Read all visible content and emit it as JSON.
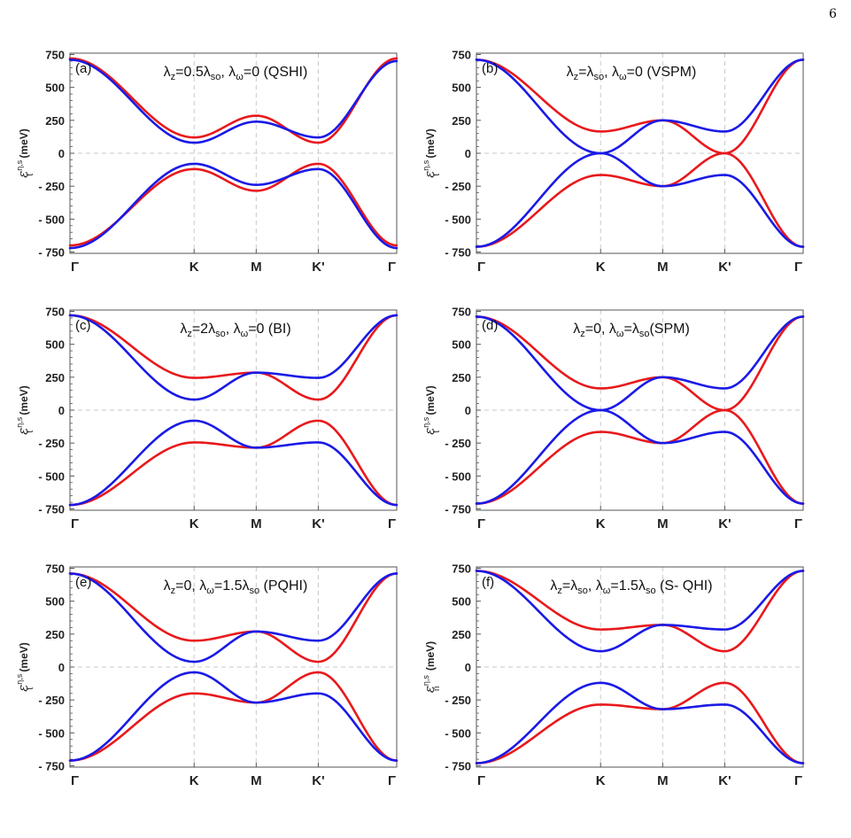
{
  "page_number": "6",
  "colors": {
    "band_red": "#e8191c",
    "band_blue": "#1a1ae6",
    "grid": "#c8c8c8",
    "frame": "#555555"
  },
  "chart_data": [
    {
      "type": "line",
      "panel_label": "(a)",
      "title": {
        "pre": "λ",
        "sub1": "z",
        "mid": "=0.5λ",
        "sub2": "so",
        "mid2": ", λ",
        "sub3": "ω",
        "post": "=0 (QSHI)"
      },
      "ylabel": "ε",
      "ylabel_sup": "η,s",
      "ylabel_sub": "t",
      "ylabel_unit": "(meV)",
      "ylim": [
        -760,
        760
      ],
      "yticks": [
        750,
        500,
        250,
        0,
        -250,
        -500,
        -750
      ],
      "ytick_labels": [
        "750",
        "500",
        "250",
        "0",
        "- 250",
        "- 500",
        "- 750"
      ],
      "xticks": [
        0,
        0.38,
        0.57,
        0.76,
        1
      ],
      "xtick_labels": [
        "Γ",
        "K",
        "M",
        "K'",
        "Γ"
      ],
      "series": [
        {
          "color": "red",
          "values": [
            720,
            120,
            285,
            80,
            720
          ]
        },
        {
          "color": "blue",
          "values": [
            710,
            80,
            240,
            120,
            700
          ]
        },
        {
          "color": "red",
          "values": [
            -700,
            -120,
            -285,
            -80,
            -700
          ]
        },
        {
          "color": "blue",
          "values": [
            -720,
            -80,
            -240,
            -120,
            -720
          ]
        }
      ]
    },
    {
      "type": "line",
      "panel_label": "(b)",
      "title": {
        "pre": "λ",
        "sub1": "z",
        "mid": "=λ",
        "sub2": "so",
        "mid2": ", λ",
        "sub3": "ω",
        "post": "=0 (VSPM)"
      },
      "ylabel": "ε",
      "ylabel_sup": "η,s",
      "ylabel_sub": "t",
      "ylabel_unit": "(meV)",
      "ylim": [
        -760,
        760
      ],
      "yticks": [
        750,
        500,
        250,
        0,
        -250,
        -500,
        -750
      ],
      "ytick_labels": [
        "750",
        "500",
        "250",
        "0",
        "- 250",
        "- 500",
        "- 750"
      ],
      "xticks": [
        0,
        0.38,
        0.57,
        0.76,
        1
      ],
      "xtick_labels": [
        "Γ",
        "K",
        "M",
        "K'",
        "Γ"
      ],
      "series": [
        {
          "color": "red",
          "values": [
            710,
            165,
            250,
            0,
            710
          ]
        },
        {
          "color": "blue",
          "values": [
            710,
            0,
            250,
            165,
            710
          ]
        },
        {
          "color": "red",
          "values": [
            -710,
            -165,
            -250,
            0,
            -710
          ]
        },
        {
          "color": "blue",
          "values": [
            -710,
            0,
            -250,
            -165,
            -710
          ]
        }
      ]
    },
    {
      "type": "line",
      "panel_label": "(c)",
      "title": {
        "pre": "λ",
        "sub1": "z",
        "mid": "=2λ",
        "sub2": "so",
        "mid2": ", λ",
        "sub3": "ω",
        "post": "=0 (BI)"
      },
      "ylabel": "ε",
      "ylabel_sup": "η,s",
      "ylabel_sub": "t",
      "ylabel_unit": "(meV)",
      "ylim": [
        -760,
        760
      ],
      "yticks": [
        750,
        500,
        250,
        0,
        -250,
        -500,
        -750
      ],
      "ytick_labels": [
        "750",
        "500",
        "250",
        "0",
        "- 250",
        "- 500",
        "- 750"
      ],
      "xticks": [
        0,
        0.38,
        0.57,
        0.76,
        1
      ],
      "xtick_labels": [
        "Γ",
        "K",
        "M",
        "K'",
        "Γ"
      ],
      "series": [
        {
          "color": "red",
          "values": [
            720,
            245,
            285,
            80,
            720
          ]
        },
        {
          "color": "blue",
          "values": [
            720,
            80,
            285,
            245,
            720
          ]
        },
        {
          "color": "red",
          "values": [
            -720,
            -245,
            -285,
            -80,
            -720
          ]
        },
        {
          "color": "blue",
          "values": [
            -720,
            -80,
            -285,
            -245,
            -720
          ]
        }
      ]
    },
    {
      "type": "line",
      "panel_label": "(d)",
      "title": {
        "pre": "λ",
        "sub1": "z",
        "mid": "=0, λ",
        "sub2": "ω",
        "mid2": "=λ",
        "sub3": "so",
        "post": "(SPM)"
      },
      "ylabel": "ε",
      "ylabel_sup": "η,s",
      "ylabel_sub": "t",
      "ylabel_unit": "(meV)",
      "ylim": [
        -760,
        760
      ],
      "yticks": [
        750,
        500,
        250,
        0,
        -250,
        -500,
        -750
      ],
      "ytick_labels": [
        "750",
        "500",
        "250",
        "0",
        "- 250",
        "- 500",
        "- 750"
      ],
      "xticks": [
        0,
        0.38,
        0.57,
        0.76,
        1
      ],
      "xtick_labels": [
        "Γ",
        "K",
        "M",
        "K'",
        "Γ"
      ],
      "series": [
        {
          "color": "red",
          "values": [
            710,
            165,
            250,
            0,
            710
          ]
        },
        {
          "color": "blue",
          "values": [
            710,
            0,
            250,
            165,
            710
          ]
        },
        {
          "color": "red",
          "values": [
            -710,
            -165,
            -250,
            0,
            -710
          ]
        },
        {
          "color": "blue",
          "values": [
            -710,
            0,
            -250,
            -165,
            -710
          ]
        }
      ]
    },
    {
      "type": "line",
      "panel_label": "(e)",
      "title": {
        "pre": "λ",
        "sub1": "z",
        "mid": "=0, λ",
        "sub2": "ω",
        "mid2": "=1.5λ",
        "sub3": "so",
        "post": " (PQHI)"
      },
      "ylabel": "ε",
      "ylabel_sup": "η,s",
      "ylabel_sub": "t",
      "ylabel_unit": "(meV)",
      "ylim": [
        -760,
        760
      ],
      "yticks": [
        750,
        500,
        250,
        0,
        -250,
        -500,
        -750
      ],
      "ytick_labels": [
        "750",
        "500",
        "250",
        "0",
        "- 250",
        "- 500",
        "- 750"
      ],
      "xticks": [
        0,
        0.38,
        0.57,
        0.76,
        1
      ],
      "xtick_labels": [
        "Γ",
        "K",
        "M",
        "K'",
        "Γ"
      ],
      "series": [
        {
          "color": "red",
          "values": [
            710,
            200,
            270,
            40,
            710
          ]
        },
        {
          "color": "blue",
          "values": [
            710,
            40,
            270,
            200,
            710
          ]
        },
        {
          "color": "red",
          "values": [
            -710,
            -200,
            -270,
            -40,
            -710
          ]
        },
        {
          "color": "blue",
          "values": [
            -710,
            -40,
            -270,
            -200,
            -710
          ]
        }
      ]
    },
    {
      "type": "line",
      "panel_label": "(f)",
      "title": {
        "pre": "λ",
        "sub1": "z",
        "mid": "=λ",
        "sub2": "so",
        "mid2": ", λ",
        "sub3": "ω",
        "post": "=1.5λ",
        "post_sub": "so",
        "post2": " (S- QHI)"
      },
      "ylabel": "ε",
      "ylabel_sup": "η,s",
      "ylabel_sub": "n",
      "ylabel_unit": "(meV)",
      "ylim": [
        -760,
        760
      ],
      "yticks": [
        750,
        500,
        250,
        0,
        -250,
        -500,
        -750
      ],
      "ytick_labels": [
        "750",
        "500",
        "250",
        "0",
        "- 250",
        "- 500",
        "- 750"
      ],
      "xticks": [
        0,
        0.38,
        0.57,
        0.76,
        1
      ],
      "xtick_labels": [
        "Γ",
        "K",
        "M",
        "K'",
        "Γ"
      ],
      "series": [
        {
          "color": "red",
          "values": [
            730,
            285,
            320,
            120,
            730
          ]
        },
        {
          "color": "blue",
          "values": [
            730,
            120,
            320,
            285,
            730
          ]
        },
        {
          "color": "red",
          "values": [
            -730,
            -285,
            -320,
            -120,
            -730
          ]
        },
        {
          "color": "blue",
          "values": [
            -730,
            -120,
            -320,
            -285,
            -730
          ]
        }
      ]
    }
  ]
}
